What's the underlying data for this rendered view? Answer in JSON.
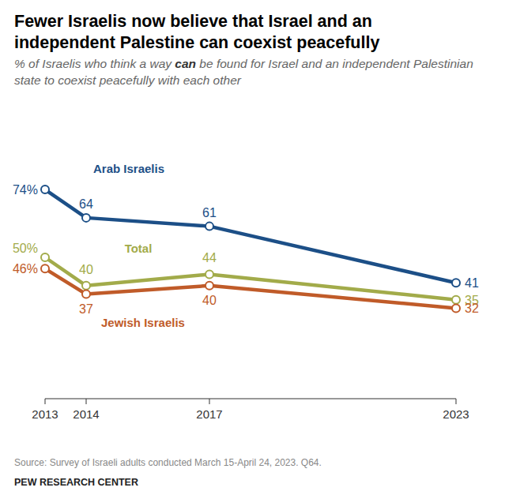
{
  "chart_data": {
    "type": "line",
    "title": "Fewer Israelis now believe that Israel and an independent Palestine can coexist peacefully",
    "subtitle": [
      "% of Israelis who think a way ",
      "can",
      " be found for Israel and an independent Palestinian state to coexist peacefully with each other"
    ],
    "source": "Source: Survey of Israeli adults conducted March 15-April 24, 2023. Q64.",
    "credit": "PEW RESEARCH CENTER",
    "x": [
      2013,
      2014,
      2017,
      2023
    ],
    "xlim": [
      2013,
      2023
    ],
    "xticks": [
      2013,
      2014,
      2017,
      2023
    ],
    "ylim": [
      0,
      100
    ],
    "tick_labels": "x",
    "data_labels": true,
    "marker": "circle",
    "series": [
      {
        "name": "Arab Israelis",
        "color": "#1c4f87",
        "values": [
          74,
          64,
          61,
          41
        ],
        "value_labels": [
          "74%",
          "64",
          "61",
          "41"
        ]
      },
      {
        "name": "Total",
        "color": "#a2ab4a",
        "values": [
          50,
          40,
          44,
          35
        ],
        "value_labels": [
          "50%",
          "40",
          "44",
          "35"
        ]
      },
      {
        "name": "Jewish Israelis",
        "color": "#c05b29",
        "values": [
          46,
          37,
          40,
          32
        ],
        "value_labels": [
          "46%",
          "37",
          "40",
          "32"
        ]
      }
    ]
  }
}
